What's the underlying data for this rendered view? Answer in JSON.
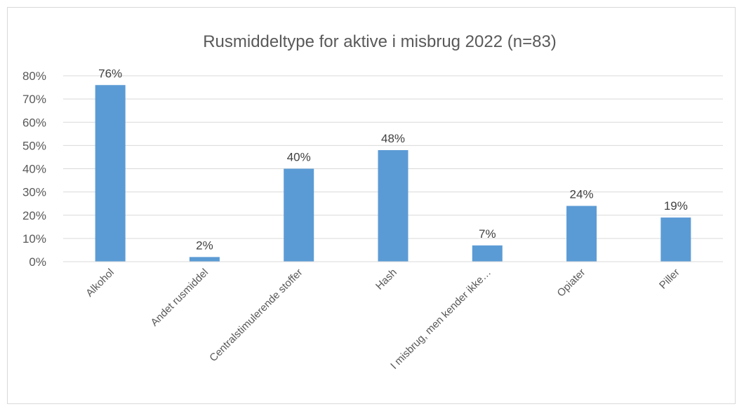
{
  "chart_data": {
    "type": "bar",
    "title": "Rusmiddeltype for aktive i misbrug 2022 (n=83)",
    "categories": [
      "Alkohol",
      "Andet rusmiddel",
      "Centralstimulerende stoffer",
      "Hash",
      "I misbrug, men kender ikke…",
      "Opiater",
      "Piller"
    ],
    "values": [
      76,
      2,
      40,
      48,
      7,
      24,
      19
    ],
    "data_labels": [
      "76%",
      "2%",
      "40%",
      "48%",
      "7%",
      "24%",
      "19%"
    ],
    "y_ticks": [
      "0%",
      "10%",
      "20%",
      "30%",
      "40%",
      "50%",
      "60%",
      "70%",
      "80%"
    ],
    "ylim": [
      0,
      80
    ],
    "grid": true,
    "legend": "none",
    "bar_color": "#5b9bd5"
  }
}
